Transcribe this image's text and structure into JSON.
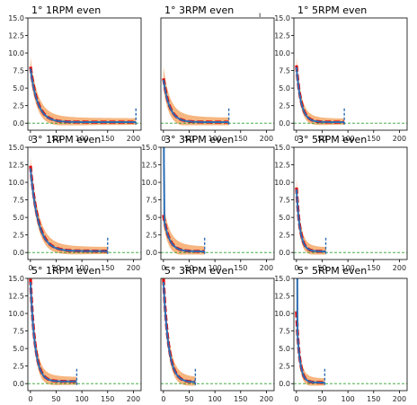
{
  "chart_data": [
    {
      "type": "line",
      "title": "1° 1RPM even",
      "xlim": [
        -5,
        215
      ],
      "ylim": [
        -1,
        15
      ],
      "xticks": [
        "0",
        "50",
        "100",
        "150",
        "200"
      ],
      "yticks": [
        "0.0",
        "2.5",
        "5.0",
        "7.5",
        "10.0",
        "12.5",
        "15.0"
      ],
      "y0": 7.8,
      "tau": 14,
      "asym": 0.15,
      "end": 205,
      "band": 1.6
    },
    {
      "type": "line",
      "title": "1° 3RPM even",
      "xlim": [
        -5,
        215
      ],
      "ylim": [
        -1,
        15
      ],
      "xticks": [
        "0",
        "50",
        "100",
        "150",
        "200"
      ],
      "yticks": [],
      "y0": 6.2,
      "tau": 12,
      "asym": 0.15,
      "end": 127,
      "band": 1.8
    },
    {
      "type": "line",
      "title": "1° 5RPM even",
      "xlim": [
        -5,
        215
      ],
      "ylim": [
        -1,
        15
      ],
      "xticks": [
        "0",
        "50",
        "100",
        "150",
        "200"
      ],
      "yticks": [
        "0.0",
        "2.5",
        "5.0",
        "7.5",
        "10.0",
        "12.5",
        "15.0"
      ],
      "y0": 8.0,
      "tau": 9,
      "asym": 0.15,
      "end": 93,
      "band": 1.4
    },
    {
      "type": "line",
      "title": "3° 1RPM even",
      "xlim": [
        -5,
        215
      ],
      "ylim": [
        -1,
        15
      ],
      "xticks": [
        "0",
        "50",
        "100",
        "150",
        "200"
      ],
      "yticks": [
        "0.0",
        "2.5",
        "5.0",
        "7.5",
        "10.0",
        "12.5",
        "15.0"
      ],
      "y0": 12.0,
      "tau": 15,
      "asym": 0.2,
      "end": 150,
      "band": 1.6
    },
    {
      "type": "line",
      "title": "3° 3RPM even",
      "xlim": [
        -5,
        215
      ],
      "ylim": [
        -1,
        15
      ],
      "xticks": [
        "0",
        "50",
        "100",
        "150",
        "200"
      ],
      "yticks": [
        "0.0",
        "2.5",
        "5.0",
        "7.5",
        "10.0",
        "12.5",
        "15.0"
      ],
      "y0": 5.2,
      "tau": 11,
      "asym": 0.15,
      "end": 80,
      "band": 1.8,
      "spike": true
    },
    {
      "type": "line",
      "title": "3° 5RPM even",
      "xlim": [
        -5,
        215
      ],
      "ylim": [
        -1,
        15
      ],
      "xticks": [
        "0",
        "50",
        "100",
        "150",
        "200"
      ],
      "yticks": [
        "0.0",
        "2.5",
        "5.0",
        "7.5",
        "10.0",
        "12.5",
        "15.0"
      ],
      "y0": 9.0,
      "tau": 7,
      "asym": 0.15,
      "end": 57,
      "band": 1.6
    },
    {
      "type": "line",
      "title": "5° 1RPM even",
      "xlim": [
        -5,
        215
      ],
      "ylim": [
        -1,
        15
      ],
      "xticks": [
        "0",
        "50",
        "100",
        "150",
        "200"
      ],
      "yticks": [
        "0.0",
        "2.5",
        "5.0",
        "7.5",
        "10.0",
        "12.5",
        "15.0"
      ],
      "y0": 14.5,
      "tau": 9,
      "asym": 0.3,
      "end": 90,
      "band": 1.8
    },
    {
      "type": "line",
      "title": "5° 3RPM even",
      "xlim": [
        -5,
        215
      ],
      "ylim": [
        -1,
        15
      ],
      "xticks": [
        "0",
        "50",
        "100",
        "150",
        "200"
      ],
      "yticks": [],
      "y0": 14.5,
      "tau": 10,
      "asym": 0.2,
      "end": 62,
      "band": 1.8
    },
    {
      "type": "line",
      "title": "5° 5RPM even",
      "xlim": [
        -5,
        215
      ],
      "ylim": [
        -1,
        15
      ],
      "xticks": [
        "0",
        "50",
        "100",
        "150",
        "200"
      ],
      "yticks": [
        "0.0",
        "2.5",
        "5.0",
        "7.5",
        "10.0",
        "12.5",
        "15.0"
      ],
      "y0": 10.0,
      "tau": 6,
      "asym": 0.15,
      "end": 55,
      "band": 1.6,
      "spike": true
    }
  ],
  "stray_mark": "ı",
  "colors": {
    "band": "#f4a460",
    "mean": "#e00000",
    "fit": "#2d6db5",
    "baseline": "#2ca02c"
  }
}
